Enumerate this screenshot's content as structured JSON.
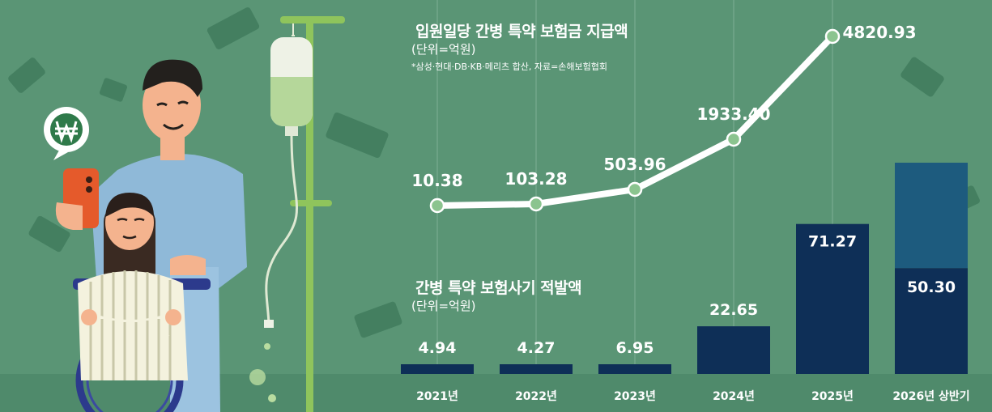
{
  "chart_data": [
    {
      "type": "line",
      "title": "입원일당 간병 특약 보험금 지급액",
      "unit": "(단위=억원)",
      "source": "*삼성·현대·DB·KB·메리츠 합산, 자료=손해보험협회",
      "categories": [
        "2021년",
        "2022년",
        "2023년",
        "2024년",
        "2025년"
      ],
      "values": [
        10.38,
        103.28,
        503.96,
        1933.4,
        4820.93
      ],
      "labels": [
        "10.38",
        "103.28",
        "503.96",
        "1933.40",
        "4820.93"
      ],
      "line_color": "#ffffff",
      "point_color": "#8bc48f"
    },
    {
      "type": "bar",
      "title": "간병 특약 보험사기 적발액",
      "unit": "(단위=억원)",
      "categories": [
        "2021년",
        "2022년",
        "2023년",
        "2024년",
        "2025년",
        "2026년 상반기"
      ],
      "values": [
        4.94,
        4.27,
        6.95,
        22.65,
        71.27,
        50.3
      ],
      "labels": [
        "4.94",
        "4.27",
        "6.95",
        "22.65",
        "71.27",
        "50.30"
      ],
      "bar_color": "#0e2f57",
      "highlight_color": "#1d5b7e"
    }
  ]
}
